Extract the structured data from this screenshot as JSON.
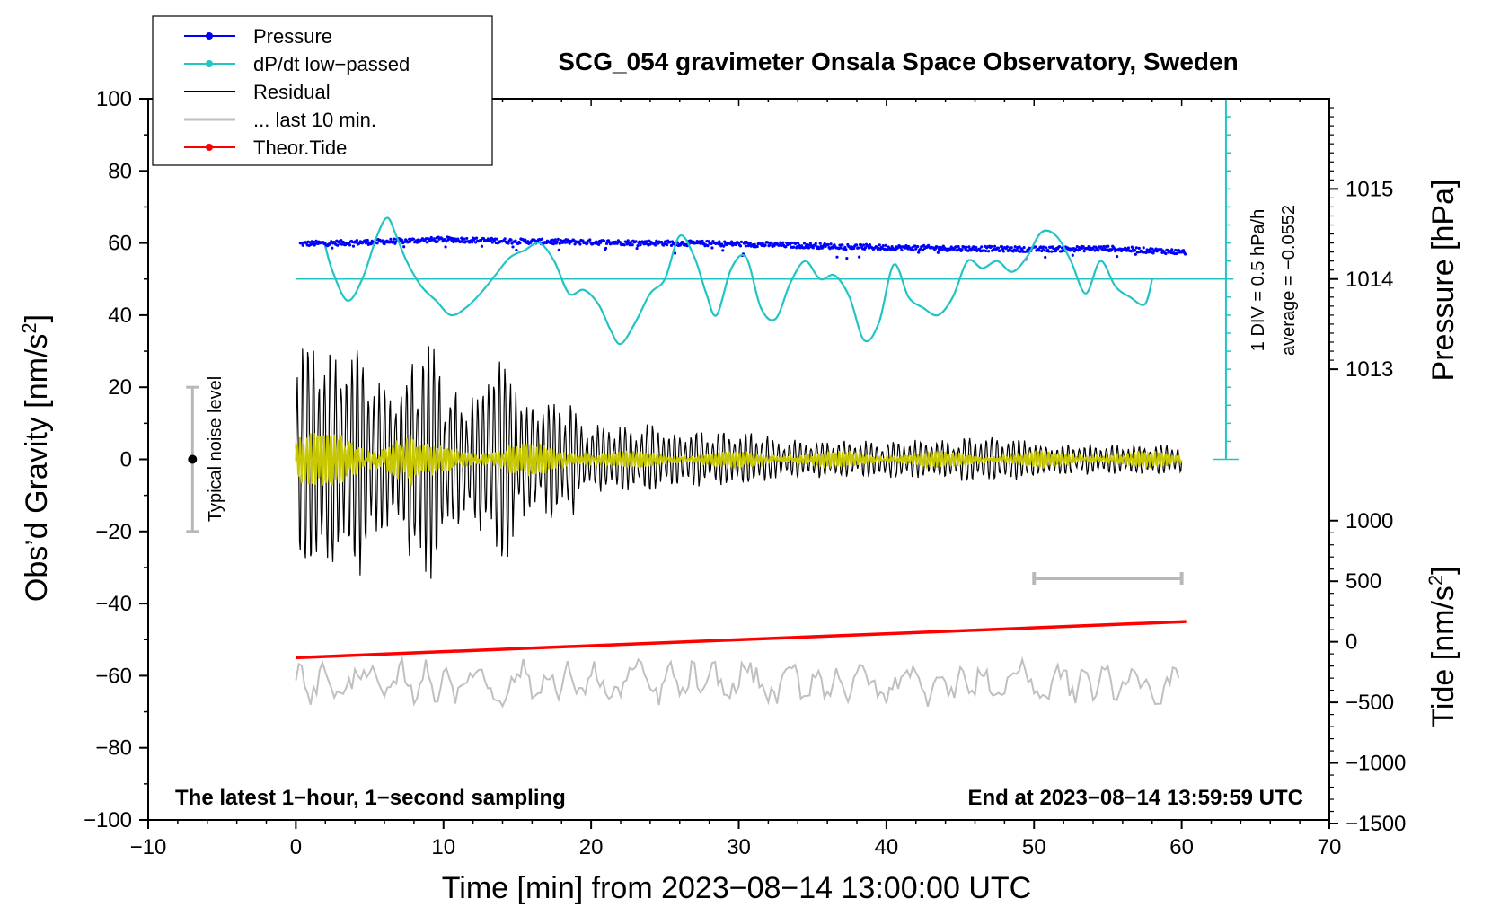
{
  "chart_data": {
    "type": "line",
    "title": "SCG_054 gravimeter Onsala Space Observatory, Sweden",
    "xlabel": "Time [min] from 2023−08−14 13:00:00 UTC",
    "ylabel_left": "Obs’d Gravity [nm/s",
    "ylabel_left_sup": "2",
    "ylabel_left_close": "]",
    "ylabel_right_top": "Pressure [hPa]",
    "ylabel_right_bottom": "Tide [nm/s",
    "ylabel_right_bottom_sup": "2",
    "ylabel_right_bottom_close": "]",
    "xlim": [
      -10,
      70
    ],
    "ylim": [
      -100,
      100
    ],
    "x_ticks": [
      "−10",
      "0",
      "10",
      "20",
      "30",
      "40",
      "50",
      "60",
      "70"
    ],
    "x_tick_values": [
      -10,
      0,
      10,
      20,
      30,
      40,
      50,
      60,
      70
    ],
    "y_ticks": [
      "100",
      "80",
      "60",
      "40",
      "20",
      "0",
      "−20",
      "−40",
      "−60",
      "−80",
      "−100"
    ],
    "y_tick_values": [
      100,
      80,
      60,
      40,
      20,
      0,
      -20,
      -40,
      -60,
      -80,
      -100
    ],
    "pressure_axis": {
      "ticks": [
        "1015",
        "1014",
        "1013"
      ],
      "tick_values": [
        1015,
        1014,
        1013
      ],
      "left_axis_equivalent": [
        75,
        50,
        25
      ]
    },
    "tide_axis": {
      "ticks": [
        "1000",
        "500",
        "0",
        "−500",
        "−1000",
        "−1500"
      ],
      "tick_values": [
        1000,
        500,
        0,
        -500,
        -1000,
        -1500
      ],
      "left_axis_equivalent": [
        -17,
        -33.8,
        -50.6,
        -67.4,
        -84.2,
        -101
      ]
    },
    "legend": {
      "position": "top-left",
      "entries": [
        {
          "label": "Pressure",
          "color": "#0000ff",
          "marker": true
        },
        {
          "label": "dP/dt low−passed",
          "color": "#22c4c4",
          "marker": true
        },
        {
          "label": "Residual",
          "color": "#000000",
          "marker": false
        },
        {
          "label": "... last 10 min.",
          "color": "#c0c0c0",
          "marker": false
        },
        {
          "label": "Theor.Tide",
          "color": "#ff0000",
          "marker": true
        }
      ]
    },
    "annotations": {
      "bottom_left": "The latest 1−hour, 1−second sampling",
      "bottom_right": "End at 2023−08−14 13:59:59 UTC",
      "noise_label": "Typical noise level",
      "div_label": "1 DIV = 0.5 hPa/h",
      "average_label": "average = −0.0552"
    },
    "noise_bar": {
      "x": -7,
      "center": 0,
      "low": -20,
      "high": 20
    },
    "last_10min_bar": {
      "x_start": 50,
      "x_end": 60,
      "y": -33
    },
    "dpdt_scale_bar": {
      "x": 63,
      "y_bottom": 0,
      "y_top": 100,
      "divisions": 20
    },
    "series": [
      {
        "name": "Pressure",
        "color": "#0000ff",
        "unit": "hPa",
        "x": [
          0,
          5,
          10,
          15,
          20,
          25,
          30,
          35,
          40,
          45,
          50,
          55,
          60
        ],
        "values": [
          1014.39,
          1014.41,
          1014.44,
          1014.42,
          1014.41,
          1014.4,
          1014.39,
          1014.37,
          1014.35,
          1014.34,
          1014.33,
          1014.34,
          1014.3
        ]
      },
      {
        "name": "dP/dt low-passed",
        "color": "#22c4c4",
        "baseline": 50,
        "x": [
          2,
          2.5,
          3.5,
          4.5,
          5.5,
          6.2,
          6.8,
          7.5,
          8.5,
          9.5,
          10.5,
          11.5,
          12.5,
          13.5,
          14.5,
          15.5,
          16.5,
          17.5,
          18.5,
          19.5,
          20.5,
          21.3,
          22,
          23,
          24,
          25,
          26,
          27,
          27.8,
          28.5,
          29.5,
          30.5,
          31.5,
          32.5,
          33.5,
          34.5,
          35.5,
          36.5,
          37.5,
          38.5,
          39.5,
          40.5,
          41.5,
          42.5,
          43.5,
          44.5,
          45.5,
          46.5,
          47.5,
          48.5,
          49.5,
          50.5,
          51.5,
          52.5,
          53.5,
          54.5,
          55.5,
          56.5,
          57.5,
          58
        ],
        "values": [
          59,
          52,
          44,
          50,
          62,
          67,
          62,
          55,
          48,
          44,
          40,
          42,
          46,
          51,
          56,
          58,
          60,
          55,
          46,
          47,
          43,
          36,
          32,
          38,
          46,
          50,
          62,
          56,
          46,
          40,
          53,
          56,
          42,
          39,
          49,
          55,
          50,
          51,
          45,
          33,
          38,
          54,
          45,
          42,
          40,
          45,
          55,
          53,
          55,
          52,
          56,
          63,
          62,
          55,
          46,
          55,
          48,
          45,
          43,
          50
        ]
      },
      {
        "name": "Residual",
        "color": "#000000",
        "segments": [
          {
            "from": 0,
            "to": 2.5,
            "amplitude": 32
          },
          {
            "from": 2.5,
            "to": 5,
            "amplitude": 30
          },
          {
            "from": 5,
            "to": 7.5,
            "amplitude": 20
          },
          {
            "from": 7.5,
            "to": 10,
            "amplitude": 32
          },
          {
            "from": 10,
            "to": 13,
            "amplitude": 18
          },
          {
            "from": 13,
            "to": 15,
            "amplitude": 28
          },
          {
            "from": 15,
            "to": 19,
            "amplitude": 16
          },
          {
            "from": 19,
            "to": 25,
            "amplitude": 9
          },
          {
            "from": 25,
            "to": 32,
            "amplitude": 7
          },
          {
            "from": 32,
            "to": 45,
            "amplitude": 5
          },
          {
            "from": 45,
            "to": 50,
            "amplitude": 6
          },
          {
            "from": 50,
            "to": 60,
            "amplitude": 4
          }
        ]
      },
      {
        "name": "Residual smoothed",
        "color": "#c8c800",
        "segments": [
          {
            "from": 0,
            "to": 8,
            "amplitude": 7
          },
          {
            "from": 8,
            "to": 20,
            "amplitude": 4
          },
          {
            "from": 20,
            "to": 60,
            "amplitude": 2
          }
        ]
      },
      {
        "name": "... last 10 min.",
        "color": "#c0c0c0",
        "offset": -62,
        "amplitude": 4,
        "x_range": [
          0,
          60
        ]
      },
      {
        "name": "Theor.Tide",
        "color": "#ff0000",
        "x": [
          0,
          60
        ],
        "values": [
          -55,
          -45
        ]
      }
    ]
  }
}
